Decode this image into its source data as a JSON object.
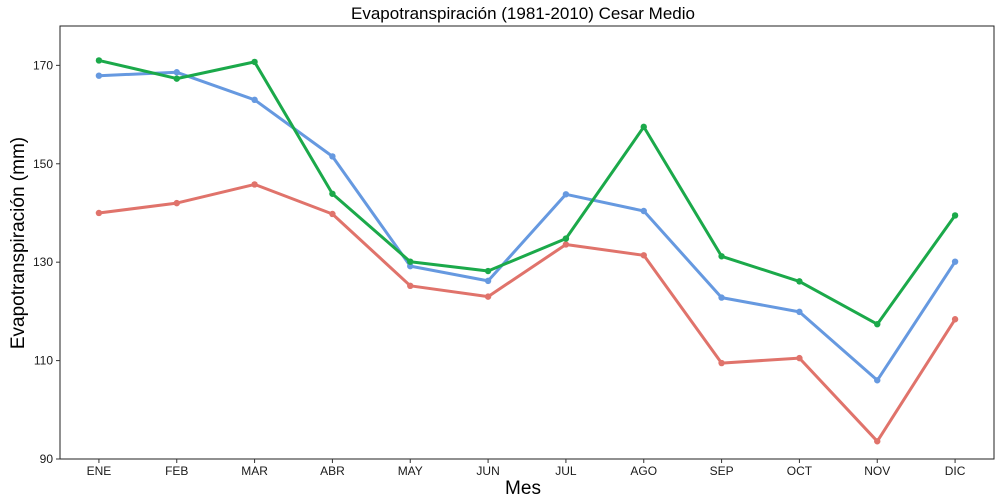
{
  "chart_data": {
    "type": "line",
    "title": "Evapotranspiración (1981-2010)  Cesar Medio",
    "xlabel": "Mes",
    "ylabel": "Evapotranspiración (mm)",
    "categories": [
      "ENE",
      "FEB",
      "MAR",
      "ABR",
      "MAY",
      "JUN",
      "JUL",
      "AGO",
      "SEP",
      "OCT",
      "NOV",
      "DIC"
    ],
    "ylim": [
      90,
      178
    ],
    "yticks": [
      90,
      110,
      130,
      150,
      170
    ],
    "grid": false,
    "legend": "none",
    "series": [
      {
        "color": "#e0736b",
        "values": [
          140.0,
          142.0,
          145.8,
          139.8,
          125.2,
          123.0,
          133.6,
          131.4,
          109.5,
          110.5,
          93.6,
          118.4
        ]
      },
      {
        "color": "#6699e0",
        "values": [
          167.9,
          168.6,
          163.0,
          151.5,
          129.2,
          126.2,
          143.8,
          140.4,
          122.8,
          119.9,
          106.0,
          130.1
        ]
      },
      {
        "color": "#1ba94a",
        "values": [
          171.0,
          167.3,
          170.7,
          143.9,
          130.1,
          128.2,
          134.8,
          157.5,
          131.2,
          126.1,
          117.4,
          139.5
        ]
      }
    ]
  }
}
